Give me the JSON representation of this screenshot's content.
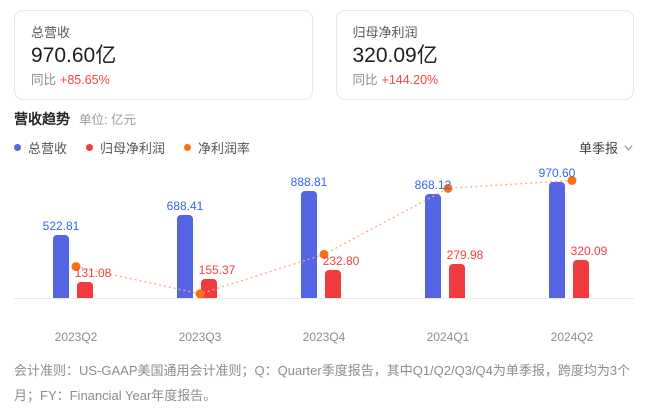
{
  "cards": [
    {
      "title": "总营收",
      "value": "970.60亿",
      "yoy_label": "同比",
      "yoy_value": "+85.65%"
    },
    {
      "title": "归母净利润",
      "value": "320.09亿",
      "yoy_label": "同比",
      "yoy_value": "+144.20%"
    }
  ],
  "chart_header": {
    "title": "营收趋势",
    "unit_label": "单位: 亿元",
    "period_selector": "单季报"
  },
  "legend": [
    {
      "label": "总营收",
      "color": "#5465e2"
    },
    {
      "label": "归母净利润",
      "color": "#f03b41"
    },
    {
      "label": "净利润率",
      "color": "#fa7114"
    }
  ],
  "chart_data": {
    "type": "bar",
    "categories": [
      "2023Q2",
      "2023Q3",
      "2023Q4",
      "2024Q1",
      "2024Q2"
    ],
    "series": [
      {
        "name": "总营收",
        "type": "bar",
        "color": "#5465e2",
        "label_color": "#3565f2",
        "values": [
          522.81,
          688.41,
          888.81,
          868.12,
          970.6
        ]
      },
      {
        "name": "归母净利润",
        "type": "bar",
        "color": "#f03b41",
        "label_color": "#f44040",
        "values": [
          131.08,
          155.37,
          232.8,
          279.98,
          320.09
        ]
      },
      {
        "name": "净利润率",
        "type": "line",
        "color": "#fa7114",
        "line_color": "#f9ab80",
        "derived_from": "归母净利润 / 总营收"
      }
    ],
    "title": "营收趋势",
    "xlabel": "",
    "ylabel": "亿元",
    "ylim": [
      0,
      1000
    ],
    "grid": false,
    "legend_position": "top-left",
    "value_labels": true
  },
  "footnote": "会计准则：US-GAAP美国通用会计准则；Q：Quarter季度报告，其中Q1/Q2/Q3/Q4为单季报，跨度均为3个月；FY：Financial Year年度报告。"
}
